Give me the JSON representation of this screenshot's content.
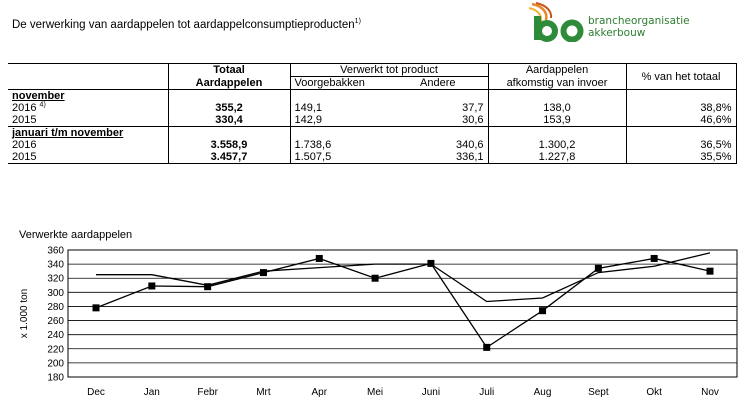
{
  "header": {
    "title": "De verwerking van aardappelen tot aardappelconsumptieproducten",
    "title_sup": "1)"
  },
  "logo": {
    "mark": "bo",
    "text": "brancheorganisatie akkerbouw"
  },
  "table": {
    "col_total_1": "Totaal",
    "col_total_2": "Aardappelen",
    "col_processed": "Verwerkt tot product",
    "col_sub_1": "Voorgebakken",
    "col_sub_2": "Andere",
    "col_import_1": "Aardappelen",
    "col_import_2": "afkomstig van invoer",
    "col_pct": "% van het totaal",
    "sections": [
      {
        "label": "november",
        "rows": [
          {
            "year": "2016",
            "sup": "4)",
            "total": "355,2",
            "voorgebakken": "149,1",
            "andere": "37,7",
            "invoer": "138,0",
            "pct": "38,8%"
          },
          {
            "year": "2015",
            "sup": "",
            "total": "330,4",
            "voorgebakken": "142,9",
            "andere": "30,6",
            "invoer": "153,9",
            "pct": "46,6%"
          }
        ]
      },
      {
        "label": "januari t/m november",
        "rows": [
          {
            "year": "2016",
            "sup": "",
            "total": "3.558,9",
            "voorgebakken": "1.738,6",
            "andere": "340,6",
            "invoer": "1.300,2",
            "pct": "36,5%"
          },
          {
            "year": "2015",
            "sup": "",
            "total": "3.457,7",
            "voorgebakken": "1.507,5",
            "andere": "336,1",
            "invoer": "1.227,8",
            "pct": "35,5%"
          }
        ]
      }
    ]
  },
  "chart_data": {
    "type": "line",
    "title": "Verwerkte aardappelen",
    "ylabel": "x 1.000 ton",
    "categories": [
      "Dec",
      "Jan",
      "Febr",
      "Mrt",
      "Apr",
      "Mei",
      "Juni",
      "Juli",
      "Aug",
      "Sept",
      "Okt",
      "Nov"
    ],
    "ylim": [
      180,
      360
    ],
    "yticks": [
      180,
      200,
      220,
      240,
      260,
      280,
      300,
      320,
      340,
      360
    ],
    "grid": true,
    "series": [
      {
        "marker": "square",
        "values": [
          278,
          309,
          308,
          328,
          348,
          320,
          341,
          222,
          274,
          334,
          348,
          330
        ]
      },
      {
        "marker": "none",
        "values": [
          325,
          325,
          310,
          330,
          335,
          340,
          340,
          287,
          292,
          328,
          337,
          356
        ]
      }
    ],
    "colors": {
      "line": "#000000",
      "grid": "#000000",
      "border": "#000000"
    }
  }
}
